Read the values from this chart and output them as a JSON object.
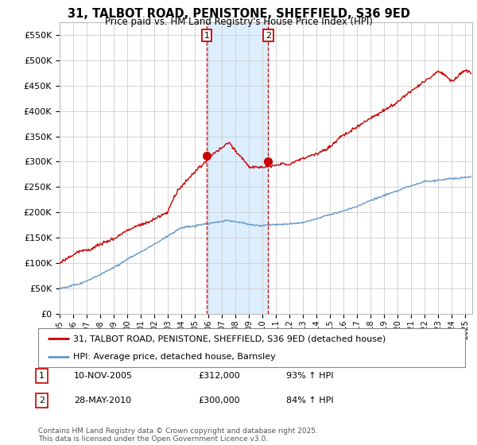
{
  "title": "31, TALBOT ROAD, PENISTONE, SHEFFIELD, S36 9ED",
  "subtitle": "Price paid vs. HM Land Registry's House Price Index (HPI)",
  "ylabel_ticks": [
    "£0",
    "£50K",
    "£100K",
    "£150K",
    "£200K",
    "£250K",
    "£300K",
    "£350K",
    "£400K",
    "£450K",
    "£500K",
    "£550K"
  ],
  "ytick_values": [
    0,
    50000,
    100000,
    150000,
    200000,
    250000,
    300000,
    350000,
    400000,
    450000,
    500000,
    550000
  ],
  "ylim": [
    0,
    575000
  ],
  "xlim_start": 1995.0,
  "xlim_end": 2025.5,
  "sale1_date": 2005.865,
  "sale1_price": 312000,
  "sale2_date": 2010.41,
  "sale2_price": 300000,
  "red_line_color": "#cc0000",
  "blue_line_color": "#6699cc",
  "shaded_color": "#ddeeff",
  "annotation_box_color": "#cc0000",
  "grid_color": "#cccccc",
  "bg_color": "#ffffff",
  "legend_line1": "31, TALBOT ROAD, PENISTONE, SHEFFIELD, S36 9ED (detached house)",
  "legend_line2": "HPI: Average price, detached house, Barnsley",
  "table_row1": [
    "1",
    "10-NOV-2005",
    "£312,000",
    "93% ↑ HPI"
  ],
  "table_row2": [
    "2",
    "28-MAY-2010",
    "£300,000",
    "84% ↑ HPI"
  ],
  "footer": "Contains HM Land Registry data © Crown copyright and database right 2025.\nThis data is licensed under the Open Government Licence v3.0."
}
